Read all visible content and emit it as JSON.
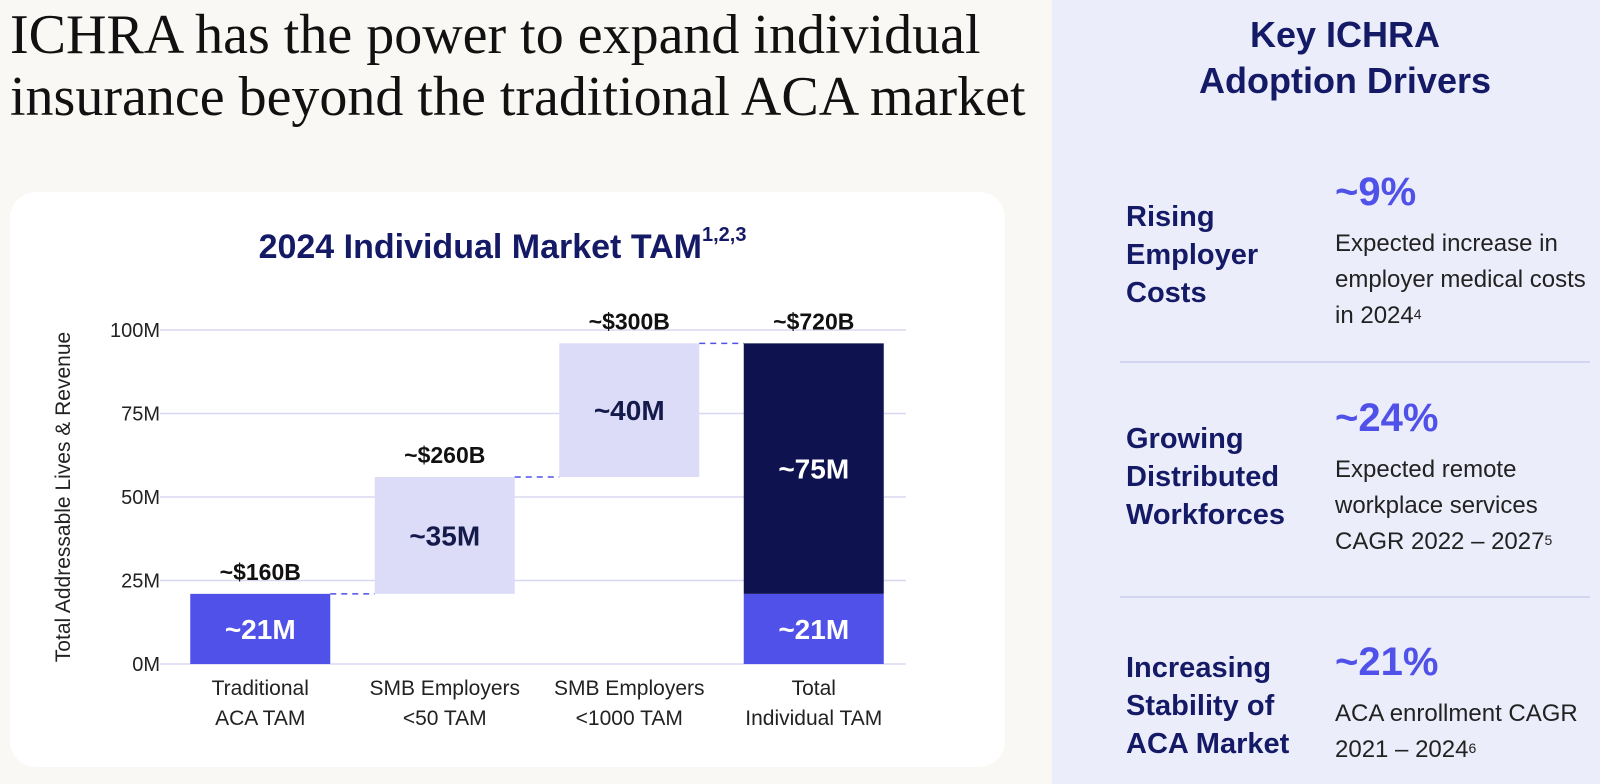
{
  "headline": "ICHRA has the power to expand individual insurance beyond the traditional ACA market",
  "chart_title": "2024 Individual Market TAM",
  "chart_title_sup": "1,2,3",
  "chart_data": {
    "type": "bar",
    "subtype": "waterfall",
    "title": "2024 Individual Market TAM",
    "ylabel": "Total Addressable Lives & Revenue",
    "xlabel": "",
    "ylim": [
      0,
      100
    ],
    "y_ticks": [
      "0M",
      "25M",
      "50M",
      "75M",
      "100M"
    ],
    "categories": [
      [
        "Traditional",
        "ACA TAM"
      ],
      [
        "SMB Employers",
        "<50 TAM"
      ],
      [
        "SMB Employers",
        "<1000 TAM"
      ],
      [
        "Total",
        "Individual TAM"
      ]
    ],
    "bars": [
      {
        "base": 0,
        "value": 21,
        "label": "~21M",
        "top_label": "~$160B",
        "color": "#4f51e8",
        "text_color": "#ffffff"
      },
      {
        "base": 21,
        "value": 35,
        "label": "~35M",
        "top_label": "~$260B",
        "color": "#dcdcf9",
        "text_color": "#141a4a"
      },
      {
        "base": 56,
        "value": 40,
        "label": "~40M",
        "top_label": "~$300B",
        "color": "#dcdcf9",
        "text_color": "#141a4a"
      },
      {
        "base": 0,
        "value": 21,
        "label": "~21M",
        "top_label": "",
        "color": "#4f51e8",
        "text_color": "#ffffff"
      },
      {
        "base": 21,
        "value": 75,
        "label": "~75M",
        "top_label": "~$720B",
        "color": "#0e1350",
        "text_color": "#ffffff"
      }
    ],
    "bar_category_index": [
      0,
      1,
      2,
      3,
      3
    ],
    "connectors": true,
    "grid": true
  },
  "panel": {
    "title_line1": "Key ICHRA",
    "title_line2": "Adoption Drivers",
    "drivers": [
      {
        "label": "Rising Employer Costs",
        "stat": "~9%",
        "desc": "Expected increase in employer medical costs in 2024",
        "sup": "4"
      },
      {
        "label": "Growing Distributed Workforces",
        "stat": "~24%",
        "desc": "Expected remote workplace services CAGR 2022 – 2027",
        "sup": "5"
      },
      {
        "label": "Increasing Stability of ACA Market",
        "stat": "~21%",
        "desc": "ACA enrollment CAGR 2021 – 2024",
        "sup": "6"
      }
    ]
  }
}
